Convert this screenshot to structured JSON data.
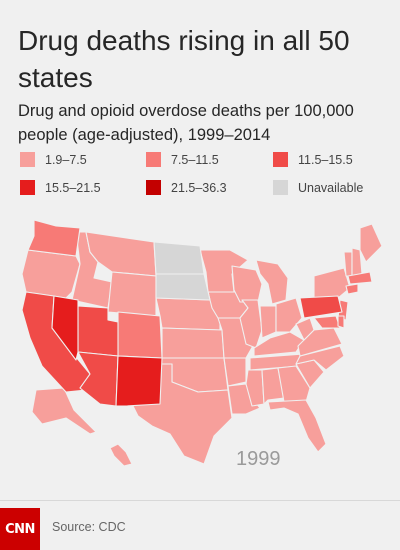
{
  "title": "Drug deaths rising in all 50 states",
  "subtitle": "Drug and opioid overdose deaths per 100,000 people (age-adjusted), 1999–2014",
  "legend": [
    {
      "label": "1.9–7.5",
      "color": "#f79f9b"
    },
    {
      "label": "7.5–11.5",
      "color": "#f77a76"
    },
    {
      "label": "11.5–15.5",
      "color": "#f04b48"
    },
    {
      "label": "15.5–21.5",
      "color": "#e51d1d"
    },
    {
      "label": "21.5–36.3",
      "color": "#c30000"
    },
    {
      "label": "Unavailable",
      "color": "#d6d6d6"
    }
  ],
  "year": "1999",
  "source": "Source: CDC",
  "logo": "CNN",
  "state_bins": {
    "1.9–7.5": [
      "WA-ALT",
      "OR",
      "ID",
      "MT",
      "WY",
      "NE",
      "KS",
      "MN",
      "IA",
      "MO",
      "WI",
      "MI",
      "IL",
      "IN",
      "OH",
      "KY",
      "TN",
      "MS",
      "AL",
      "GA",
      "SC",
      "NC",
      "VA",
      "WV",
      "OK",
      "AR",
      "LA",
      "TX",
      "NY",
      "VT",
      "NH",
      "ME",
      "FL",
      "AK",
      "HI",
      "CO-ALT"
    ],
    "7.5–11.5": [
      "WA",
      "CA-ALT",
      "UT-ALT",
      "CO",
      "AZ-ALT",
      "MD",
      "NJ",
      "CT",
      "MA",
      "RI",
      "DE"
    ],
    "11.5–15.5": [
      "CA",
      "UT",
      "AZ",
      "PA"
    ],
    "15.5–21.5": [
      "NV",
      "NM"
    ],
    "21.5–36.3": [],
    "Unavailable": [
      "ND",
      "SD"
    ]
  }
}
